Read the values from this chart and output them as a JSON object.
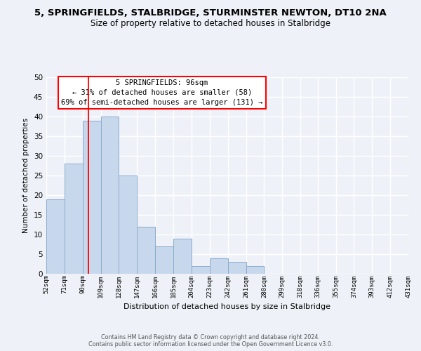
{
  "title": "5, SPRINGFIELDS, STALBRIDGE, STURMINSTER NEWTON, DT10 2NA",
  "subtitle": "Size of property relative to detached houses in Stalbridge",
  "xlabel": "Distribution of detached houses by size in Stalbridge",
  "ylabel": "Number of detached properties",
  "bin_edges": [
    52,
    71,
    90,
    109,
    128,
    147,
    166,
    185,
    204,
    223,
    242,
    261,
    280,
    299,
    318,
    336,
    355,
    374,
    393,
    412,
    431
  ],
  "bin_labels": [
    "52sqm",
    "71sqm",
    "90sqm",
    "109sqm",
    "128sqm",
    "147sqm",
    "166sqm",
    "185sqm",
    "204sqm",
    "223sqm",
    "242sqm",
    "261sqm",
    "280sqm",
    "299sqm",
    "318sqm",
    "336sqm",
    "355sqm",
    "374sqm",
    "393sqm",
    "412sqm",
    "431sqm"
  ],
  "counts": [
    19,
    28,
    39,
    40,
    25,
    12,
    7,
    9,
    2,
    4,
    3,
    2,
    0,
    0,
    0,
    0,
    0,
    0,
    0,
    0
  ],
  "bar_color": "#c8d8ec",
  "bar_edge_color": "#8aabcc",
  "vline_x": 96,
  "vline_color": "red",
  "annotation_title": "5 SPRINGFIELDS: 96sqm",
  "annotation_line1": "← 31% of detached houses are smaller (58)",
  "annotation_line2": "69% of semi-detached houses are larger (131) →",
  "annotation_box_color": "red",
  "annotation_bg": "white",
  "ylim": [
    0,
    50
  ],
  "yticks": [
    0,
    5,
    10,
    15,
    20,
    25,
    30,
    35,
    40,
    45,
    50
  ],
  "title_fontsize": 9.5,
  "subtitle_fontsize": 8.5,
  "footer_line1": "Contains HM Land Registry data © Crown copyright and database right 2024.",
  "footer_line2": "Contains public sector information licensed under the Open Government Licence v3.0.",
  "background_color": "#eef2f8"
}
